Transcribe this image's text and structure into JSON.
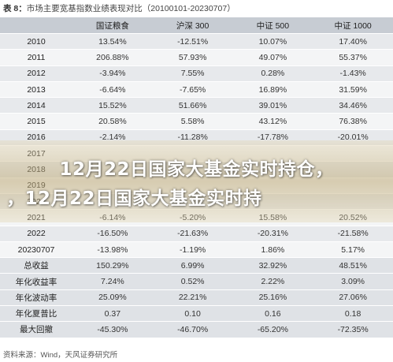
{
  "title": {
    "label": "表 8：",
    "text": "市场主要宽基指数业绩表现对比（20100101-20230707）"
  },
  "table": {
    "headers": [
      "",
      "国证粮食",
      "沪深 300",
      "中证 500",
      "中证 1000"
    ],
    "rows": [
      [
        "2010",
        "13.54%",
        "-12.51%",
        "10.07%",
        "17.40%"
      ],
      [
        "2011",
        "206.88%",
        "57.93%",
        "49.07%",
        "55.37%"
      ],
      [
        "2012",
        "-3.94%",
        "7.55%",
        "0.28%",
        "-1.43%"
      ],
      [
        "2013",
        "-6.64%",
        "-7.65%",
        "16.89%",
        "31.59%"
      ],
      [
        "2014",
        "15.52%",
        "51.66%",
        "39.01%",
        "34.46%"
      ],
      [
        "2015",
        "20.58%",
        "5.58%",
        "43.12%",
        "76.38%"
      ],
      [
        "2016",
        "-2.14%",
        "-11.28%",
        "-17.78%",
        "-20.01%"
      ],
      [
        "2017",
        "",
        "",
        "",
        ""
      ],
      [
        "2018",
        "",
        "",
        "",
        ""
      ],
      [
        "2019",
        "",
        "",
        "",
        ""
      ],
      [
        "2020",
        "",
        "",
        "",
        ""
      ],
      [
        "2021",
        "-6.14%",
        "-5.20%",
        "15.58%",
        "20.52%"
      ],
      [
        "2022",
        "-16.50%",
        "-21.63%",
        "-20.31%",
        "-21.58%"
      ],
      [
        "20230707",
        "-13.98%",
        "-1.19%",
        "1.86%",
        "5.17%"
      ],
      [
        "总收益",
        "150.29%",
        "6.99%",
        "32.92%",
        "48.51%"
      ],
      [
        "年化收益率",
        "7.24%",
        "0.52%",
        "2.22%",
        "3.09%"
      ],
      [
        "年化波动率",
        "25.09%",
        "22.21%",
        "25.16%",
        "27.06%"
      ],
      [
        "年化夏普比",
        "0.37",
        "0.10",
        "0.16",
        "0.18"
      ],
      [
        "最大回撤",
        "-45.30%",
        "-46.70%",
        "-65.20%",
        "-72.35%"
      ]
    ]
  },
  "overlay": {
    "line1": "12月22日国家大基金实时持仓，",
    "line2": "，12月22日国家大基金实时持"
  },
  "source": "资料来源：Wind，天风证券研究所"
}
